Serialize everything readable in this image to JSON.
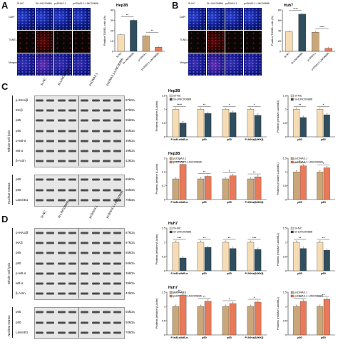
{
  "panels": {
    "A": {
      "letter": "A",
      "cell": "Hep3B",
      "cols": [
        "Si-NC",
        "Si-LINC00886",
        "pcDNA3.1",
        "pcDNA3.1-LINC00886"
      ],
      "rows": [
        "DAPI",
        "TUNEL",
        "Merged"
      ]
    },
    "B": {
      "letter": "B",
      "cell": "Huh7",
      "cols": [
        "Si-NC",
        "Si-LINC00886",
        "pcDNA3.1",
        "pcDNA3.1-LINC00886"
      ],
      "rows": [
        "DAPI",
        "TUNEL",
        "Merged"
      ]
    },
    "C": {
      "letter": "C",
      "lanes": [
        "Si-NC",
        "Si-LINC00886",
        "pcDNA3.1",
        "pcDNA3.1-LINC00886"
      ],
      "whole": [
        "p-IKKα/β",
        "IKKβ",
        "p65",
        "p50",
        "p-IκB-α",
        "IκB-α",
        "β-Actin"
      ],
      "whole_kda": [
        "87kDa",
        "87kDa",
        "65kDa",
        "50kDa",
        "36kDa",
        "39kDa",
        "42kDa"
      ],
      "nuclear": [
        "p65",
        "p50",
        "LaminB1"
      ],
      "nuclear_kda": [
        "65kDa",
        "50kDa",
        "70kDa"
      ],
      "whole_label": "Whole-cell lysis",
      "nuclear_label": "Nuclear extract"
    },
    "D": {
      "letter": "D",
      "lanes": [
        "Si-NC",
        "Si-LINC00886",
        "pcDNA3.1",
        "pcDNA3.1-LINC00886"
      ],
      "whole": [
        "p-IKKα/β",
        "IKKβ",
        "p65",
        "p50",
        "p-IκB-α",
        "IκB-α",
        "β-Actin"
      ],
      "whole_kda": [
        "87kDa",
        "87kDa",
        "65kDa",
        "50kDa",
        "36kDa",
        "39kDa",
        "42kDa"
      ],
      "nuclear": [
        "p65",
        "p50",
        "LaminB1"
      ],
      "nuclear_kda": [
        "65kDa",
        "50kDa",
        "70kDa"
      ],
      "whole_label": "Whole-cell lysis",
      "nuclear_label": "Nuclear extract"
    }
  },
  "colors": {
    "ctrl": "#f6dcb4",
    "si": "#2f4f5f",
    "pc": "#c9a77a",
    "pcl": "#e87a5a"
  },
  "chart_data": [
    {
      "id": "A-bar",
      "type": "bar",
      "title": "Hep3B",
      "ylabel": "Positive TUNEL cells (%)",
      "ylim": [
        0,
        40
      ],
      "categories": [
        "Si-NC",
        "Si-LINC00886",
        "pcDNA3.1",
        "pcDNA3.1-LINC00886"
      ],
      "values": [
        16,
        30,
        15,
        4
      ],
      "colors": [
        "#f6dcb4",
        "#2f4f5f",
        "#c9a77a",
        "#e87a5a"
      ],
      "sig": [
        "**",
        "**"
      ]
    },
    {
      "id": "B-bar",
      "type": "bar",
      "title": "Huh7",
      "ylabel": "Positive TUNEL cells (%)",
      "ylim": [
        0,
        80
      ],
      "categories": [
        "Si-NC",
        "Si-LINC00886",
        "pcDNA3.1",
        "pcDNA3.1-LINC00886"
      ],
      "values": [
        38,
        72,
        37,
        6
      ],
      "colors": [
        "#f6dcb4",
        "#2f4f5f",
        "#c9a77a",
        "#e87a5a"
      ],
      "sig": [
        "****",
        "****"
      ]
    },
    {
      "id": "C1",
      "type": "bar",
      "title": "Hep3B",
      "ylabel": "Protiens (relative β-Actin)",
      "ylim": [
        0,
        1.5
      ],
      "categories": [
        "P-IκB-α/IκB-α",
        "p50",
        "p65",
        "P-IKKα/β/IKKβ"
      ],
      "series": [
        {
          "name": "Si-NC",
          "values": [
            1.0,
            1.0,
            1.0,
            1.0
          ]
        },
        {
          "name": "Si-LINC00886",
          "values": [
            0.5,
            0.85,
            0.88,
            0.78
          ]
        }
      ],
      "colors": [
        "#f6dcb4",
        "#2f4f5f"
      ],
      "sig": [
        "****",
        "**",
        "*",
        "*"
      ]
    },
    {
      "id": "C2",
      "type": "bar",
      "title": "",
      "ylabel": "Protiens (relative LaminB1)",
      "ylim": [
        0,
        1.5
      ],
      "categories": [
        "p50",
        "p65"
      ],
      "series": [
        {
          "name": "Si-NC",
          "values": [
            1.0,
            1.0
          ]
        },
        {
          "name": "Si-LINC00886",
          "values": [
            0.7,
            0.8
          ]
        }
      ],
      "colors": [
        "#f6dcb4",
        "#2f4f5f"
      ],
      "sig": [
        "**",
        "*"
      ]
    },
    {
      "id": "C3",
      "type": "bar",
      "title": "Hep3B",
      "ylabel": "Protiens (relative β-Actin)",
      "ylim": [
        0,
        2.0
      ],
      "categories": [
        "P-IκB-α/IκB-α",
        "p50",
        "p65",
        "P-IKKα/β/IKKβ"
      ],
      "series": [
        {
          "name": "pcDNA3.1",
          "values": [
            1.0,
            1.0,
            1.0,
            1.0
          ]
        },
        {
          "name": "pcDNA3.1-LINC00886",
          "values": [
            1.7,
            1.12,
            1.15,
            1.1
          ]
        }
      ],
      "colors": [
        "#c9a77a",
        "#e87a5a"
      ],
      "sig": [
        "*",
        "**",
        "*",
        "**"
      ]
    },
    {
      "id": "C4",
      "type": "bar",
      "title": "",
      "ylabel": "Protiens (relative LaminB1)",
      "ylim": [
        0,
        1.5
      ],
      "categories": [
        "p50",
        "p65"
      ],
      "series": [
        {
          "name": "pcDNA3.1",
          "values": [
            1.0,
            1.0
          ]
        },
        {
          "name": "pcDNA3.1-LINC00886",
          "values": [
            1.22,
            1.15
          ]
        }
      ],
      "colors": [
        "#c9a77a",
        "#e87a5a"
      ],
      "sig": [
        "*",
        "*"
      ]
    },
    {
      "id": "D1",
      "type": "bar",
      "title": "Huh7",
      "ylabel": "Protiens (relative β-Actin)",
      "ylim": [
        0,
        1.5
      ],
      "categories": [
        "P-IκB-α/IκB-α",
        "p50",
        "p65",
        "P-IKKα/β/IKKβ"
      ],
      "series": [
        {
          "name": "Si-NC",
          "values": [
            1.0,
            1.0,
            1.0,
            1.0
          ]
        },
        {
          "name": "Si-LINC00886",
          "values": [
            0.45,
            0.82,
            0.78,
            0.75
          ]
        }
      ],
      "colors": [
        "#f6dcb4",
        "#2f4f5f"
      ],
      "sig": [
        "***",
        "**",
        "**",
        "***"
      ]
    },
    {
      "id": "D2",
      "type": "bar",
      "title": "",
      "ylabel": "Protiens (relative LaminB1)",
      "ylim": [
        0,
        1.5
      ],
      "categories": [
        "p50",
        "p65"
      ],
      "series": [
        {
          "name": "Si-NC",
          "values": [
            1.0,
            1.0
          ]
        },
        {
          "name": "Si-LINC00886",
          "values": [
            0.78,
            0.72
          ]
        }
      ],
      "colors": [
        "#f6dcb4",
        "#2f4f5f"
      ],
      "sig": [
        "**",
        "**"
      ]
    },
    {
      "id": "D3",
      "type": "bar",
      "title": "Huh7",
      "ylabel": "Protiens (relative β-Actin)",
      "ylim": [
        0,
        1.5
      ],
      "categories": [
        "P-IκB-α/IκB-α",
        "p50",
        "p65",
        "P-IKKα/β/IKKβ"
      ],
      "series": [
        {
          "name": "pcDNA3.1",
          "values": [
            1.0,
            1.0,
            1.0,
            1.0
          ]
        },
        {
          "name": "pcDNA3.1-LINC00886",
          "values": [
            1.4,
            1.18,
            1.1,
            1.15
          ]
        }
      ],
      "colors": [
        "#c9a77a",
        "#e87a5a"
      ],
      "sig": [
        "**",
        "**",
        "*",
        "*"
      ]
    },
    {
      "id": "D4",
      "type": "bar",
      "title": "",
      "ylabel": "Protiens (relative LaminB1)",
      "ylim": [
        0,
        1.5
      ],
      "categories": [
        "p50",
        "p65"
      ],
      "series": [
        {
          "name": "pcDNA3.1",
          "values": [
            1.0,
            1.0
          ]
        },
        {
          "name": "pcDNA3.1-LINC00886",
          "values": [
            1.18,
            1.25
          ]
        }
      ],
      "colors": [
        "#c9a77a",
        "#e87a5a"
      ],
      "sig": [
        "**",
        "**"
      ]
    }
  ]
}
